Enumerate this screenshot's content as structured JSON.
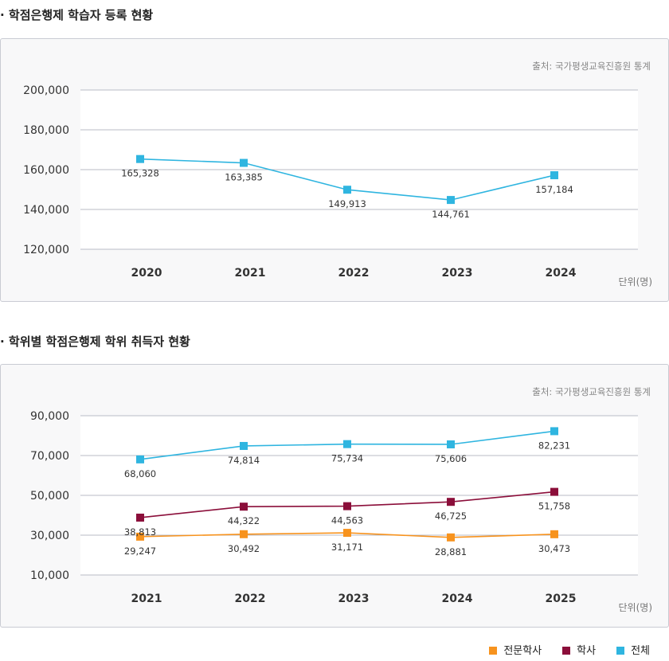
{
  "chart_data": [
    {
      "type": "line",
      "title": "학점은행제 학습자 등록 현황",
      "source": "출처: 국가평생교육진흥원 통계",
      "unit": "단위(명)",
      "categories": [
        "2020",
        "2021",
        "2022",
        "2023",
        "2024"
      ],
      "yticks": [
        "200,000",
        "180,000",
        "160,000",
        "140,000",
        "120,000"
      ],
      "ylim": [
        120000,
        200000
      ],
      "grid": true,
      "series": [
        {
          "name": "전체",
          "color": "#2fb5e0",
          "values": [
            165328,
            163385,
            149913,
            144761,
            157184
          ],
          "labels": [
            "165,328",
            "163,385",
            "149,913",
            "144,761",
            "157,184"
          ]
        }
      ]
    },
    {
      "type": "line",
      "title": "학위별 학점은행제 학위 취득자 현황",
      "source": "출처: 국가평생교육진흥원 통계",
      "unit": "단위(명)",
      "categories": [
        "2021",
        "2022",
        "2023",
        "2024",
        "2025"
      ],
      "yticks": [
        "90,000",
        "70,000",
        "50,000",
        "30,000",
        "10,000"
      ],
      "ylim": [
        10000,
        90000
      ],
      "grid": true,
      "legend": "bottom-right",
      "series": [
        {
          "name": "전문학사",
          "color": "#f7931e",
          "values": [
            29247,
            30492,
            31171,
            28881,
            30473
          ],
          "labels": [
            "29,247",
            "30,492",
            "31,171",
            "28,881",
            "30,473"
          ]
        },
        {
          "name": "학사",
          "color": "#8b0e3a",
          "values": [
            38813,
            44322,
            44563,
            46725,
            51758
          ],
          "labels": [
            "38,813",
            "44,322",
            "44,563",
            "46,725",
            "51,758"
          ]
        },
        {
          "name": "전체",
          "color": "#2fb5e0",
          "values": [
            68060,
            74814,
            75734,
            75606,
            82231
          ],
          "labels": [
            "68,060",
            "74,814",
            "75,734",
            "75,606",
            "82,231"
          ]
        }
      ]
    }
  ]
}
